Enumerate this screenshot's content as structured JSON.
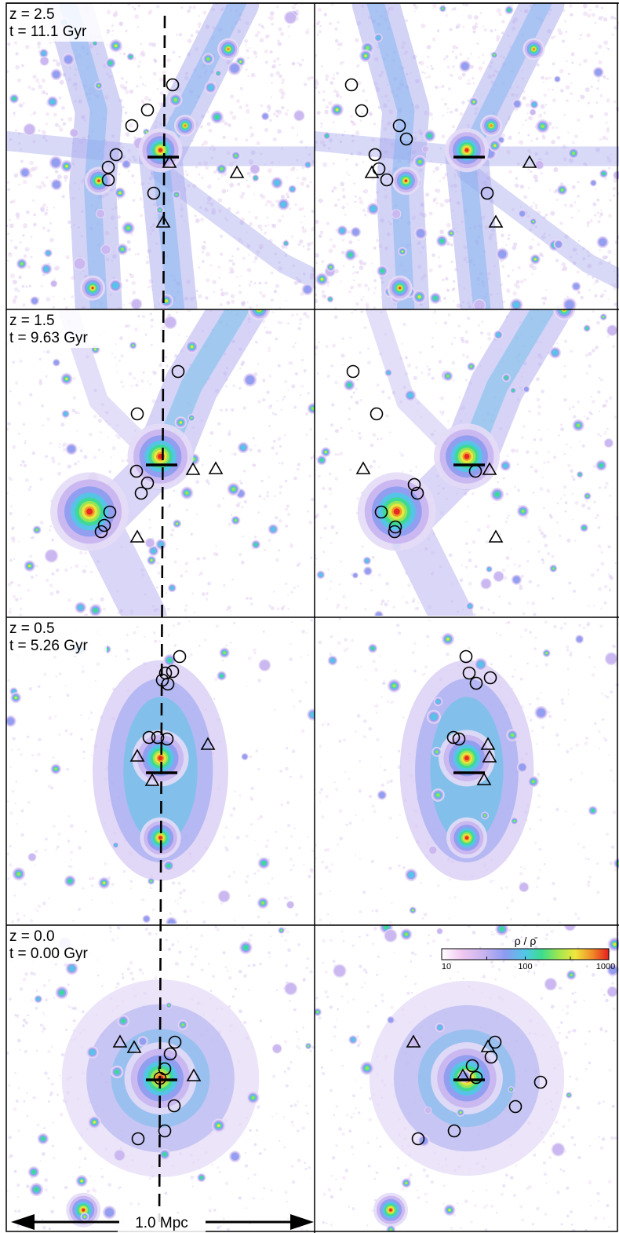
{
  "rows": [
    {
      "z_label": "z = 2.5",
      "t_label": "t = 11.1 Gyr"
    },
    {
      "z_label": "z = 1.5",
      "t_label": "t = 9.63 Gyr"
    },
    {
      "z_label": "z = 0.5",
      "t_label": "t = 5.26 Gyr"
    },
    {
      "z_label": "z = 0.0",
      "t_label": "t = 0.00 Gyr"
    }
  ],
  "colorbar": {
    "title": "ρ / ρ̄",
    "ticks": [
      "10",
      "100",
      "1000"
    ],
    "colors": [
      "#ffffff",
      "#f0c8f0",
      "#c8b4f0",
      "#8c9bf0",
      "#50c8e6",
      "#3cdc8c",
      "#a0e650",
      "#f0e63c",
      "#f08c28",
      "#e61e1e"
    ]
  },
  "scale_bar": {
    "label": "1.0 Mpc"
  },
  "palette": {
    "red": "#e8321e",
    "orange": "#f08c28",
    "yellow": "#f0e63c",
    "green": "#50dc8c",
    "cyan": "#50c8e6",
    "blue": "#8c9bf0",
    "purple": "#c8b4f0",
    "pink": "#f0c8f0"
  }
}
